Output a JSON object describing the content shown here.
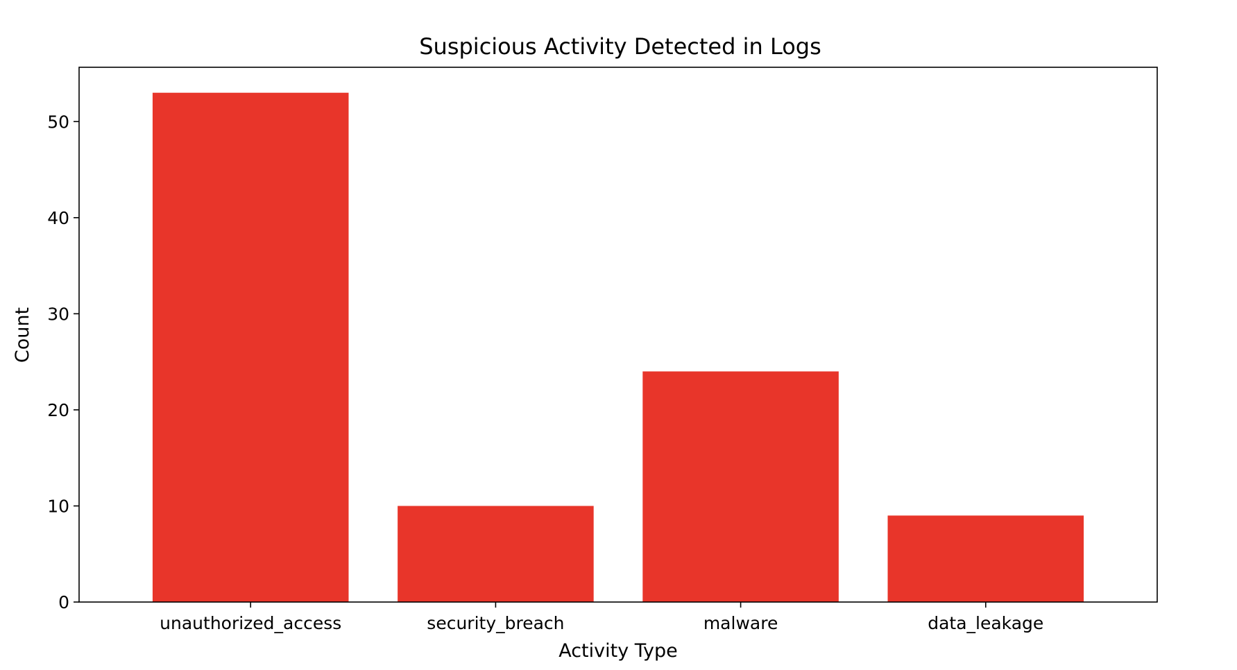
{
  "chart_data": {
    "type": "bar",
    "title": "Suspicious Activity Detected in Logs",
    "xlabel": "Activity Type",
    "ylabel": "Count",
    "categories": [
      "unauthorized_access",
      "security_breach",
      "malware",
      "data_leakage"
    ],
    "values": [
      53,
      10,
      24,
      9
    ],
    "ylim": [
      0,
      55.65
    ],
    "yticks": [
      0,
      10,
      20,
      30,
      40,
      50
    ],
    "grid": false,
    "bar_color": "#e8352a",
    "axis_color": "#000000"
  }
}
